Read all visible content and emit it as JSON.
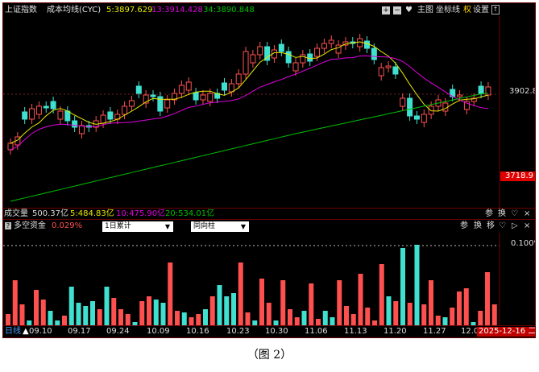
{
  "header": {
    "index_name": "上证指数",
    "indicator": "成本均线(CYC)",
    "ma5": "5:3897.629",
    "ma13": "13:3914.428",
    "ma34": "34:3890.848",
    "toolbar": [
      "主图",
      "坐标线",
      "权",
      "设置"
    ],
    "colors": {
      "ma5": "#e8e800",
      "ma13": "#e000e0",
      "ma34": "#00c000",
      "up": "#ff5050",
      "down": "#40e0d0"
    }
  },
  "price_axis": {
    "label_high": "3902.8",
    "label_low": "3718.9"
  },
  "volume_bar": {
    "title": "成交量",
    "total": "500.37亿",
    "v5": "5:484.83亿",
    "v10": "10:475.90亿",
    "v20": "20:534.01亿",
    "buttons": [
      "参",
      "换"
    ]
  },
  "sub_panel": {
    "icon_label": "?",
    "title": "多空资金",
    "value": "0.029%",
    "select_period": "1日累计",
    "select_type": "同向柱",
    "buttons": [
      "参",
      "换",
      "移"
    ],
    "axis_top": "0.100%"
  },
  "date_axis": {
    "period": "日线",
    "ticks": [
      "09.10",
      "09.17",
      "09.24",
      "10.09",
      "10.16",
      "10.23",
      "10.30",
      "11.06",
      "11.13",
      "11.20",
      "11.27",
      "12.0"
    ],
    "current_date": "2025-12-16",
    "current_date_suffix": "二"
  },
  "caption": "（图 2）"
}
